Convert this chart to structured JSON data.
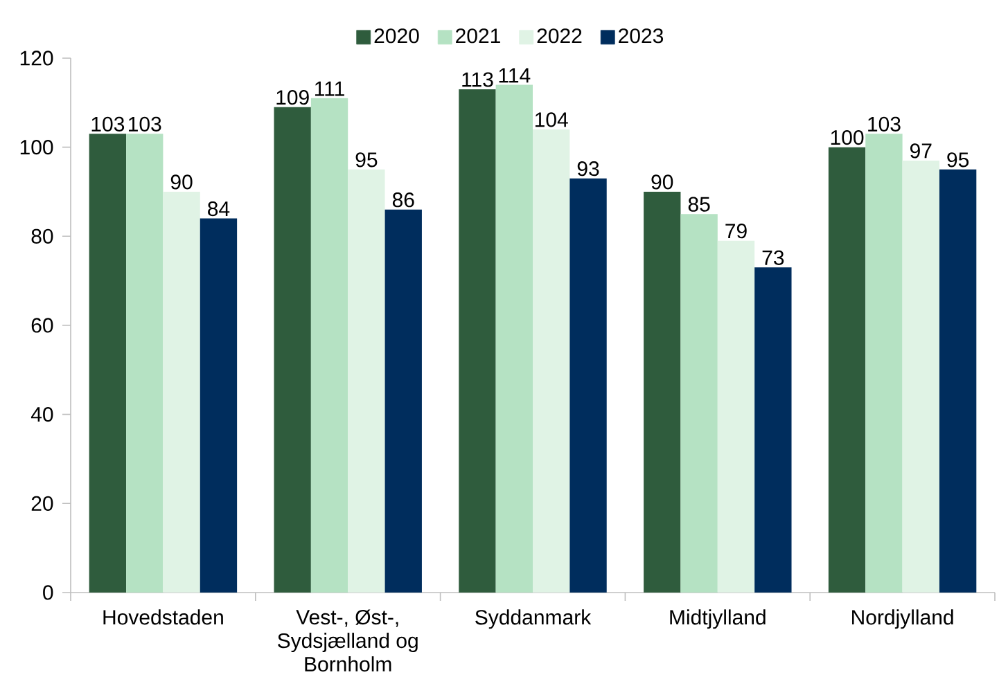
{
  "chart_data": {
    "type": "bar",
    "categories": [
      "Hovedstaden",
      "Vest-, Øst-, Sydsjælland og Bornholm",
      "Syddanmark",
      "Midtjylland",
      "Nordjylland"
    ],
    "series": [
      {
        "name": "2020",
        "color": "#2f5c3d",
        "values": [
          103,
          109,
          113,
          90,
          100
        ]
      },
      {
        "name": "2021",
        "color": "#b5e2c3",
        "values": [
          103,
          111,
          114,
          85,
          103
        ]
      },
      {
        "name": "2022",
        "color": "#e0f3e5",
        "values": [
          90,
          95,
          104,
          79,
          97
        ]
      },
      {
        "name": "2023",
        "color": "#002d5d",
        "values": [
          84,
          86,
          93,
          73,
          95
        ]
      }
    ],
    "ylim": [
      0,
      120
    ],
    "yticks": [
      0,
      20,
      40,
      60,
      80,
      100,
      120
    ],
    "data_labels": true,
    "legend": "top"
  }
}
